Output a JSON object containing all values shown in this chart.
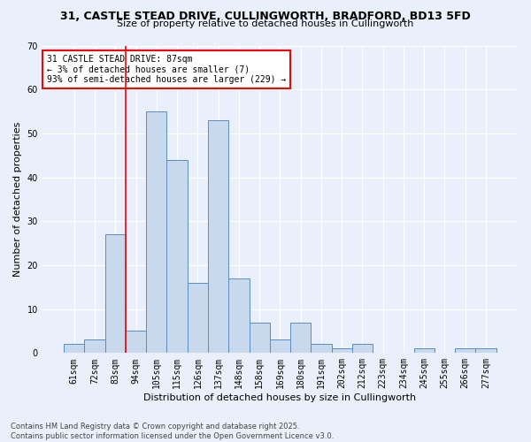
{
  "title_line1": "31, CASTLE STEAD DRIVE, CULLINGWORTH, BRADFORD, BD13 5FD",
  "title_line2": "Size of property relative to detached houses in Cullingworth",
  "xlabel": "Distribution of detached houses by size in Cullingworth",
  "ylabel": "Number of detached properties",
  "bin_labels": [
    "61sqm",
    "72sqm",
    "83sqm",
    "94sqm",
    "105sqm",
    "115sqm",
    "126sqm",
    "137sqm",
    "148sqm",
    "158sqm",
    "169sqm",
    "180sqm",
    "191sqm",
    "202sqm",
    "212sqm",
    "223sqm",
    "234sqm",
    "245sqm",
    "255sqm",
    "266sqm",
    "277sqm"
  ],
  "bar_heights": [
    2,
    3,
    27,
    5,
    55,
    44,
    16,
    53,
    17,
    7,
    3,
    7,
    2,
    1,
    2,
    0,
    0,
    1,
    0,
    1,
    1
  ],
  "bar_color": "#c9d9ed",
  "bar_edgecolor": "#5b8dc0",
  "ylim": [
    0,
    70
  ],
  "yticks": [
    0,
    10,
    20,
    30,
    40,
    50,
    60,
    70
  ],
  "annotation_text": "31 CASTLE STEAD DRIVE: 87sqm\n← 3% of detached houses are smaller (7)\n93% of semi-detached houses are larger (229) →",
  "annotation_box_color": "white",
  "annotation_box_edgecolor": "red",
  "footnote_line1": "Contains HM Land Registry data © Crown copyright and database right 2025.",
  "footnote_line2": "Contains public sector information licensed under the Open Government Licence v3.0.",
  "background_color": "#eaf0fb",
  "plot_bg_color": "#eaf0fb",
  "grid_color": "white",
  "title1_fontsize": 9,
  "title2_fontsize": 8,
  "xlabel_fontsize": 8,
  "ylabel_fontsize": 8,
  "tick_fontsize": 7,
  "annot_fontsize": 7,
  "footnote_fontsize": 6
}
